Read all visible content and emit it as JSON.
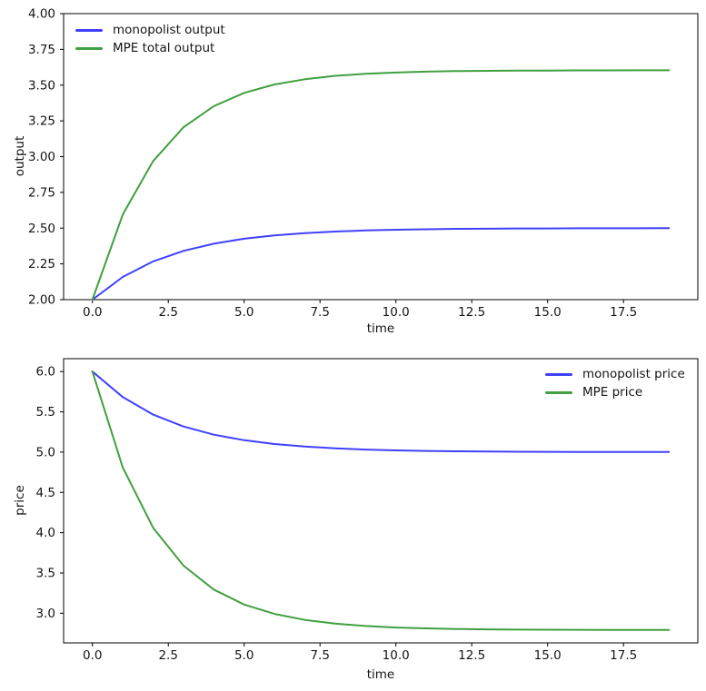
{
  "figure": {
    "background": "#ffffff",
    "text_color": "#151515",
    "frame_color": "#000000"
  },
  "chart_data": [
    {
      "type": "line",
      "title": "",
      "xlabel": "time",
      "ylabel": "output",
      "xlim": [
        -0.95,
        19.95
      ],
      "ylim": [
        2.0,
        4.0
      ],
      "grid": false,
      "legend_position": "upper-left",
      "xticks": {
        "values": [
          0,
          2.5,
          5,
          7.5,
          10,
          12.5,
          15,
          17.5
        ],
        "labels": [
          "0.0",
          "2.5",
          "5.0",
          "7.5",
          "10.0",
          "12.5",
          "15.0",
          "17.5"
        ]
      },
      "yticks": {
        "values": [
          2.0,
          2.25,
          2.5,
          2.75,
          3.0,
          3.25,
          3.5,
          3.75,
          4.0
        ],
        "labels": [
          "2.00",
          "2.25",
          "2.50",
          "2.75",
          "3.00",
          "3.25",
          "3.50",
          "3.75",
          "4.00"
        ]
      },
      "x": [
        0,
        1,
        2,
        3,
        4,
        5,
        6,
        7,
        8,
        9,
        10,
        11,
        12,
        13,
        14,
        15,
        16,
        17,
        18,
        19
      ],
      "series": [
        {
          "name": "monopolist output",
          "color": "#4040ff",
          "values": [
            2.0,
            2.159,
            2.267,
            2.341,
            2.391,
            2.426,
            2.449,
            2.465,
            2.476,
            2.484,
            2.489,
            2.492,
            2.495,
            2.496,
            2.498,
            2.498,
            2.499,
            2.499,
            2.499,
            2.5
          ]
        },
        {
          "name": "MPE total output",
          "color": "#40a040",
          "values": [
            2.0,
            2.595,
            2.969,
            3.205,
            3.353,
            3.446,
            3.505,
            3.541,
            3.565,
            3.579,
            3.588,
            3.594,
            3.598,
            3.6,
            3.601,
            3.602,
            3.603,
            3.603,
            3.604,
            3.604
          ]
        }
      ]
    },
    {
      "type": "line",
      "title": "",
      "xlabel": "time",
      "ylabel": "price",
      "xlim": [
        -0.95,
        19.95
      ],
      "ylim": [
        2.632,
        6.16
      ],
      "grid": false,
      "legend_position": "upper-right",
      "xticks": {
        "values": [
          0,
          2.5,
          5,
          7.5,
          10,
          12.5,
          15,
          17.5
        ],
        "labels": [
          "0.0",
          "2.5",
          "5.0",
          "7.5",
          "10.0",
          "12.5",
          "15.0",
          "17.5"
        ]
      },
      "yticks": {
        "values": [
          3.0,
          3.5,
          4.0,
          4.5,
          5.0,
          5.5,
          6.0
        ],
        "labels": [
          "3.0",
          "3.5",
          "4.0",
          "4.5",
          "5.0",
          "5.5",
          "6.0"
        ]
      },
      "x": [
        0,
        1,
        2,
        3,
        4,
        5,
        6,
        7,
        8,
        9,
        10,
        11,
        12,
        13,
        14,
        15,
        16,
        17,
        18,
        19
      ],
      "series": [
        {
          "name": "monopolist price",
          "color": "#4040ff",
          "values": [
            6.0,
            5.683,
            5.466,
            5.318,
            5.217,
            5.148,
            5.101,
            5.069,
            5.047,
            5.032,
            5.022,
            5.015,
            5.01,
            5.007,
            5.005,
            5.003,
            5.002,
            5.002,
            5.001,
            5.001
          ]
        },
        {
          "name": "MPE price",
          "color": "#40a040",
          "values": [
            6.0,
            4.81,
            4.061,
            3.591,
            3.294,
            3.108,
            2.991,
            2.917,
            2.871,
            2.842,
            2.823,
            2.812,
            2.805,
            2.8,
            2.797,
            2.795,
            2.794,
            2.793,
            2.793,
            2.793
          ]
        }
      ]
    }
  ]
}
